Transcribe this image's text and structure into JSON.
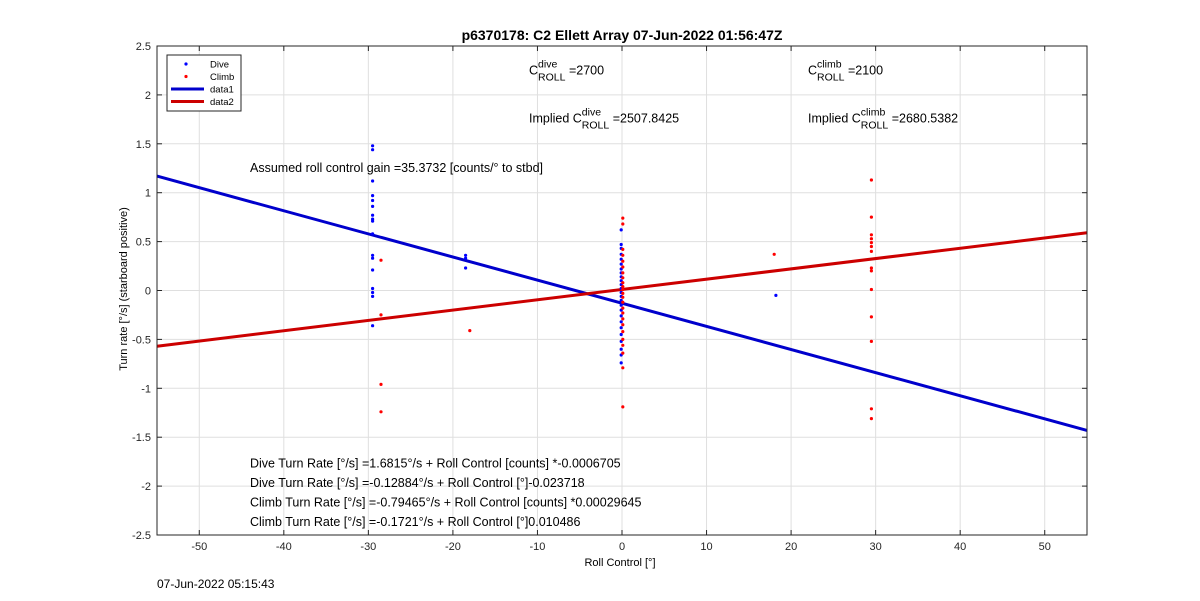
{
  "chart_data": {
    "type": "scatter",
    "title": "p6370178: C2 Ellett Array 07-Jun-2022 01:56:47Z",
    "xlabel": "Roll Control [°]",
    "ylabel": "Turn rate [°/s] (starboard positive)",
    "xlim": [
      -55,
      55
    ],
    "ylim": [
      -2.5,
      2.5
    ],
    "xticks": [
      -50,
      -40,
      -30,
      -20,
      -10,
      0,
      10,
      20,
      30,
      40,
      50
    ],
    "yticks": [
      -2.5,
      -2,
      -1.5,
      -1,
      -0.5,
      0,
      0.5,
      1,
      1.5,
      2,
      2.5
    ],
    "xtick_labels": [
      "-50",
      "-40",
      "-30",
      "-20",
      "-10",
      "0",
      "10",
      "20",
      "30",
      "40",
      "50"
    ],
    "ytick_labels": [
      "-2.5",
      "-2",
      "-1.5",
      "-1",
      "-0.5",
      "0",
      "0.5",
      "1",
      "1.5",
      "2",
      "2.5"
    ],
    "grid": true,
    "legend_position": "top-left",
    "legend": [
      {
        "name": "Dive",
        "style": "dot",
        "color": "#0000ff"
      },
      {
        "name": "Climb",
        "style": "dot",
        "color": "#ff0000"
      },
      {
        "name": "data1",
        "style": "line",
        "color": "#0000cc"
      },
      {
        "name": "data2",
        "style": "line",
        "color": "#cc0000"
      }
    ],
    "series": [
      {
        "name": "Dive",
        "kind": "scatter",
        "color": "#0000ff",
        "points": [
          [
            -29.5,
            1.48
          ],
          [
            -29.5,
            1.44
          ],
          [
            -29.5,
            1.12
          ],
          [
            -29.5,
            0.97
          ],
          [
            -29.5,
            0.92
          ],
          [
            -29.5,
            0.86
          ],
          [
            -29.5,
            0.77
          ],
          [
            -29.5,
            0.73
          ],
          [
            -29.5,
            0.71
          ],
          [
            -29.5,
            0.58
          ],
          [
            -29.5,
            0.36
          ],
          [
            -29.5,
            0.33
          ],
          [
            -29.5,
            0.21
          ],
          [
            -29.5,
            0.02
          ],
          [
            -29.5,
            -0.02
          ],
          [
            -29.5,
            -0.06
          ],
          [
            -29.5,
            -0.36
          ],
          [
            -18.5,
            0.36
          ],
          [
            -18.5,
            0.33
          ],
          [
            -18.5,
            0.23
          ],
          [
            -0.1,
            0.62
          ],
          [
            -0.1,
            0.47
          ],
          [
            -0.1,
            0.43
          ],
          [
            -0.1,
            0.37
          ],
          [
            -0.1,
            0.32
          ],
          [
            -0.1,
            0.27
          ],
          [
            -0.1,
            0.22
          ],
          [
            -0.1,
            0.18
          ],
          [
            -0.1,
            0.14
          ],
          [
            -0.1,
            0.1
          ],
          [
            -0.1,
            0.06
          ],
          [
            -0.1,
            0.02
          ],
          [
            -0.1,
            -0.02
          ],
          [
            -0.1,
            -0.06
          ],
          [
            -0.1,
            -0.1
          ],
          [
            -0.1,
            -0.15
          ],
          [
            -0.1,
            -0.2
          ],
          [
            -0.1,
            -0.26
          ],
          [
            -0.1,
            -0.32
          ],
          [
            -0.1,
            -0.38
          ],
          [
            -0.1,
            -0.45
          ],
          [
            -0.1,
            -0.52
          ],
          [
            -0.1,
            -0.6
          ],
          [
            -0.1,
            -0.66
          ],
          [
            -0.1,
            -0.74
          ],
          [
            18.2,
            -0.05
          ]
        ]
      },
      {
        "name": "Climb",
        "kind": "scatter",
        "color": "#ff0000",
        "points": [
          [
            -28.5,
            0.31
          ],
          [
            -28.5,
            -0.25
          ],
          [
            -28.5,
            -0.96
          ],
          [
            -28.5,
            -1.24
          ],
          [
            -18,
            -0.41
          ],
          [
            0.1,
            0.74
          ],
          [
            0.1,
            0.68
          ],
          [
            0.1,
            0.42
          ],
          [
            0.1,
            0.36
          ],
          [
            0.1,
            0.3
          ],
          [
            0.1,
            0.24
          ],
          [
            0.1,
            0.18
          ],
          [
            0.1,
            0.13
          ],
          [
            0.1,
            0.08
          ],
          [
            0.1,
            0.04
          ],
          [
            0.1,
            0.01
          ],
          [
            0.1,
            -0.03
          ],
          [
            0.1,
            -0.07
          ],
          [
            0.1,
            -0.12
          ],
          [
            0.1,
            -0.18
          ],
          [
            0.1,
            -0.23
          ],
          [
            0.1,
            -0.29
          ],
          [
            0.1,
            -0.35
          ],
          [
            0.1,
            -0.42
          ],
          [
            0.1,
            -0.5
          ],
          [
            0.1,
            -0.56
          ],
          [
            0.1,
            -0.64
          ],
          [
            0.1,
            -0.79
          ],
          [
            0.1,
            -1.19
          ],
          [
            18,
            0.37
          ],
          [
            29.5,
            1.13
          ],
          [
            29.5,
            0.75
          ],
          [
            29.5,
            0.57
          ],
          [
            29.5,
            0.53
          ],
          [
            29.5,
            0.49
          ],
          [
            29.5,
            0.45
          ],
          [
            29.5,
            0.4
          ],
          [
            29.5,
            0.23
          ],
          [
            29.5,
            0.2
          ],
          [
            29.5,
            0.01
          ],
          [
            29.5,
            -0.27
          ],
          [
            29.5,
            -0.52
          ],
          [
            29.5,
            -1.21
          ],
          [
            29.5,
            -1.31
          ]
        ]
      },
      {
        "name": "data1",
        "kind": "line",
        "color": "#0000cc",
        "points": [
          [
            -55,
            1.17
          ],
          [
            55,
            -1.43
          ]
        ]
      },
      {
        "name": "data2",
        "kind": "line",
        "color": "#cc0000",
        "points": [
          [
            -55,
            -0.57
          ],
          [
            55,
            0.59
          ]
        ]
      }
    ],
    "annotations": [
      {
        "x": -11,
        "y": 2.21,
        "pre": "C",
        "sup": "dive",
        "sub": "ROLL",
        "post": " =2700"
      },
      {
        "x": 22,
        "y": 2.21,
        "pre": "C",
        "sup": "climb",
        "sub": "ROLL",
        "post": " =2100"
      },
      {
        "x": -11,
        "y": 1.72,
        "pre": "Implied C",
        "sup": "dive",
        "sub": "ROLL",
        "post": " =2507.8425"
      },
      {
        "x": 22,
        "y": 1.72,
        "pre": "Implied C",
        "sup": "climb",
        "sub": "ROLL",
        "post": " =2680.5382"
      },
      {
        "x": -44,
        "y": 1.21,
        "text": "Assumed roll control gain =35.3732 [counts/° to stbd]"
      },
      {
        "x": -44,
        "y": -1.81,
        "text": "Dive Turn Rate [°/s] =1.6815°/s + Roll Control [counts] *-0.0006705"
      },
      {
        "x": -44,
        "y": -2.01,
        "text": "Dive Turn Rate [°/s] =-0.12884°/s + Roll Control [°]-0.023718"
      },
      {
        "x": -44,
        "y": -2.21,
        "text": "Climb Turn Rate [°/s] =-0.79465°/s + Roll Control [counts] *0.00029645"
      },
      {
        "x": -44,
        "y": -2.41,
        "text": "Climb Turn Rate [°/s] =-0.1721°/s + Roll Control [°]0.010486"
      }
    ]
  },
  "footer": {
    "timestamp": "07-Jun-2022 05:15:43"
  }
}
